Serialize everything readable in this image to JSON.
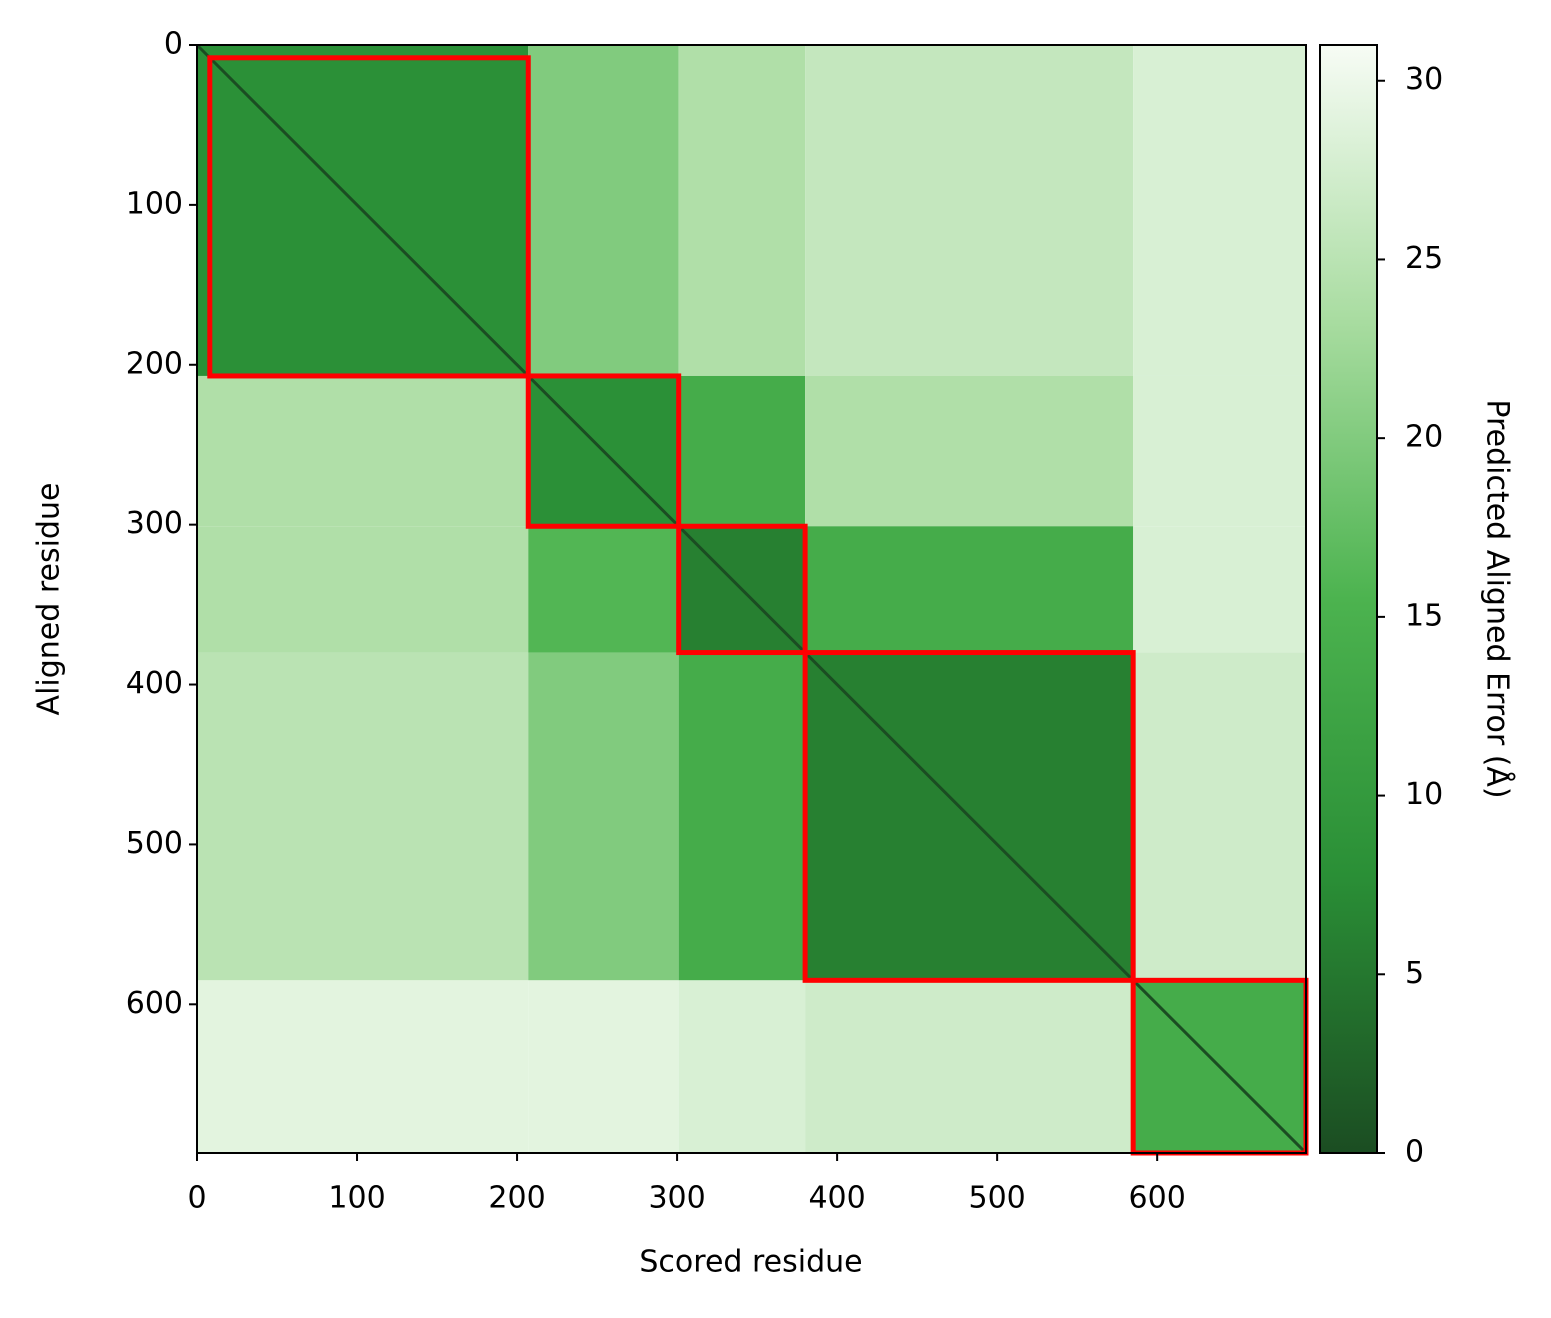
{
  "chart_data": {
    "type": "heatmap",
    "xlabel": "Scored residue",
    "ylabel": "Aligned residue",
    "colorbar_label": "Predicted Aligned Error (Å)",
    "xlim": [
      0,
      693
    ],
    "ylim": [
      693,
      0
    ],
    "xticks": [
      0,
      100,
      200,
      300,
      400,
      500,
      600
    ],
    "yticks": [
      0,
      100,
      200,
      300,
      400,
      500,
      600
    ],
    "clim": [
      0,
      31
    ],
    "cticks": [
      0,
      5,
      10,
      15,
      20,
      25,
      30
    ],
    "cmap": [
      "#1b4d22",
      "#2a8f36",
      "#4cb34f",
      "#a8dca0",
      "#f7fcf5"
    ],
    "block_edges": [
      0,
      207,
      301,
      380,
      585,
      693
    ],
    "pae": [
      [
        8,
        20,
        24,
        26,
        28
      ],
      [
        24,
        8,
        14,
        24,
        28
      ],
      [
        24,
        16,
        6,
        14,
        28
      ],
      [
        25,
        20,
        14,
        6,
        27
      ],
      [
        29,
        29,
        28,
        27,
        14
      ]
    ],
    "box_color": "#ff0000",
    "domains": [
      [
        8,
        207
      ],
      [
        207,
        301
      ],
      [
        301,
        380
      ],
      [
        380,
        585
      ],
      [
        585,
        693
      ]
    ]
  }
}
